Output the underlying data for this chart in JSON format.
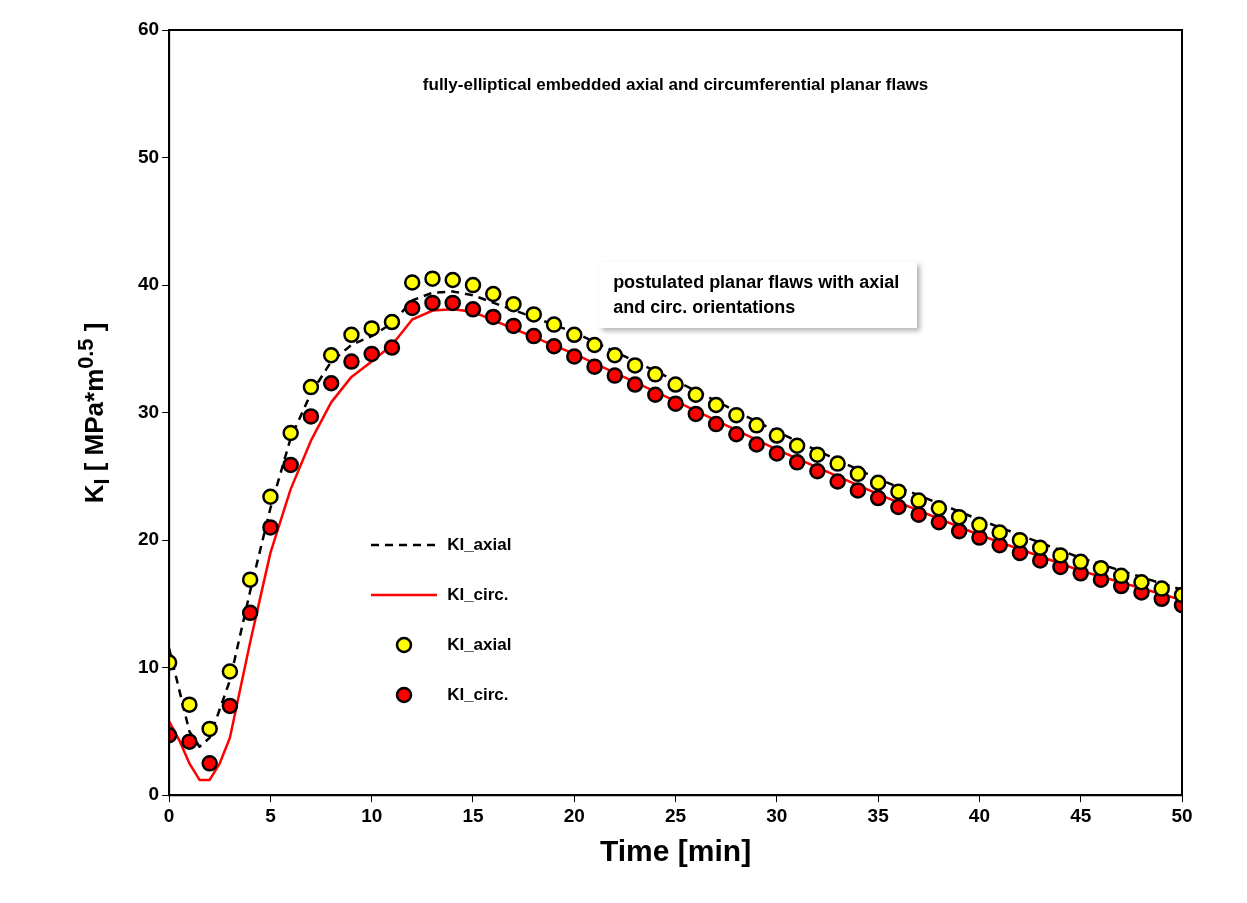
{
  "chart_data": {
    "type": "line",
    "title": "fully-elliptical embedded axial and circumferential planar flaws",
    "xlabel": "Time [min]",
    "ylabel": "K$_{I}$ [ MPa*m$^{0.5}$ ]",
    "xlim": [
      0,
      50
    ],
    "xticks": [
      0,
      5,
      10,
      15,
      20,
      25,
      30,
      35,
      40,
      45,
      50
    ],
    "ylim": [
      0,
      60
    ],
    "yticks": [
      0,
      10,
      20,
      30,
      40,
      50,
      60
    ],
    "grid": false,
    "legend": "left",
    "annotations": [
      "postulated planar flaws with axial and circ. orientations"
    ],
    "series": [
      {
        "name": "KI_axial",
        "line_style": "dashed",
        "marker": "none",
        "color": "#000000",
        "x": [
          0,
          1,
          1.5,
          2,
          3,
          4,
          5,
          6,
          7,
          8,
          9,
          10,
          11,
          12,
          13,
          14,
          15,
          20,
          25,
          30,
          35,
          40,
          45,
          50
        ],
        "values": [
          11.5,
          5,
          3.8,
          4.5,
          9,
          16,
          22.5,
          28,
          31.5,
          34,
          35.3,
          36,
          37,
          38.8,
          39.4,
          39.5,
          39.2,
          36.3,
          32.5,
          28.5,
          24.8,
          21.6,
          18.6,
          16.1
        ]
      },
      {
        "name": "KI_circ.",
        "line_style": "solid",
        "marker": "none",
        "color": "#ff0000",
        "x": [
          0,
          0.5,
          1,
          1.5,
          2,
          2.5,
          3,
          4,
          5,
          6,
          7,
          8,
          9,
          10,
          11,
          12,
          13,
          14,
          15,
          20,
          25,
          30,
          35,
          40,
          45,
          50
        ],
        "values": [
          5.8,
          4.3,
          2.5,
          1.2,
          1.2,
          2.5,
          4.5,
          12,
          19,
          24,
          27.8,
          30.8,
          32.8,
          34,
          35.3,
          37.3,
          38,
          38.1,
          37.9,
          34.6,
          30.9,
          27.1,
          23.6,
          20.4,
          17.6,
          15.3
        ]
      },
      {
        "name": "KI_axial",
        "type": "scatter",
        "marker": "circle",
        "color": "#ffff00",
        "x": [
          0,
          1,
          2,
          3,
          4,
          5,
          6,
          7,
          8,
          9,
          10,
          11,
          12,
          13,
          14,
          15,
          16,
          17,
          18,
          19,
          20,
          21,
          22,
          23,
          24,
          25,
          26,
          27,
          28,
          29,
          30,
          31,
          32,
          33,
          34,
          35,
          36,
          37,
          38,
          39,
          40,
          41,
          42,
          43,
          44,
          45,
          46,
          47,
          48,
          49,
          50
        ],
        "values": [
          10.4,
          7.1,
          5.2,
          9.7,
          16.9,
          23.4,
          28.4,
          32,
          34.5,
          36.1,
          36.6,
          37.1,
          40.2,
          40.5,
          40.4,
          40,
          39.3,
          38.5,
          37.7,
          36.9,
          36.1,
          35.3,
          34.5,
          33.7,
          33,
          32.2,
          31.4,
          30.6,
          29.8,
          29,
          28.2,
          27.4,
          26.7,
          26,
          25.2,
          24.5,
          23.8,
          23.1,
          22.5,
          21.8,
          21.2,
          20.6,
          20,
          19.4,
          18.8,
          18.3,
          17.8,
          17.2,
          16.7,
          16.2,
          15.7
        ]
      },
      {
        "name": "KI_circ.",
        "type": "scatter",
        "marker": "circle",
        "color": "#ff0000",
        "x": [
          0,
          1,
          2,
          3,
          4,
          5,
          6,
          7,
          8,
          9,
          10,
          11,
          12,
          13,
          14,
          15,
          16,
          17,
          18,
          19,
          20,
          21,
          22,
          23,
          24,
          25,
          26,
          27,
          28,
          29,
          30,
          31,
          32,
          33,
          34,
          35,
          36,
          37,
          38,
          39,
          40,
          41,
          42,
          43,
          44,
          45,
          46,
          47,
          48,
          49,
          50
        ],
        "values": [
          4.7,
          4.2,
          2.5,
          7,
          14.3,
          21,
          25.9,
          29.7,
          32.3,
          34,
          34.6,
          35.1,
          38.2,
          38.6,
          38.6,
          38.1,
          37.5,
          36.8,
          36,
          35.2,
          34.4,
          33.6,
          32.9,
          32.2,
          31.4,
          30.7,
          29.9,
          29.1,
          28.3,
          27.5,
          26.8,
          26.1,
          25.4,
          24.6,
          23.9,
          23.3,
          22.6,
          22,
          21.4,
          20.7,
          20.2,
          19.6,
          19,
          18.4,
          17.9,
          17.4,
          16.9,
          16.4,
          15.9,
          15.4,
          14.9
        ]
      }
    ]
  }
}
